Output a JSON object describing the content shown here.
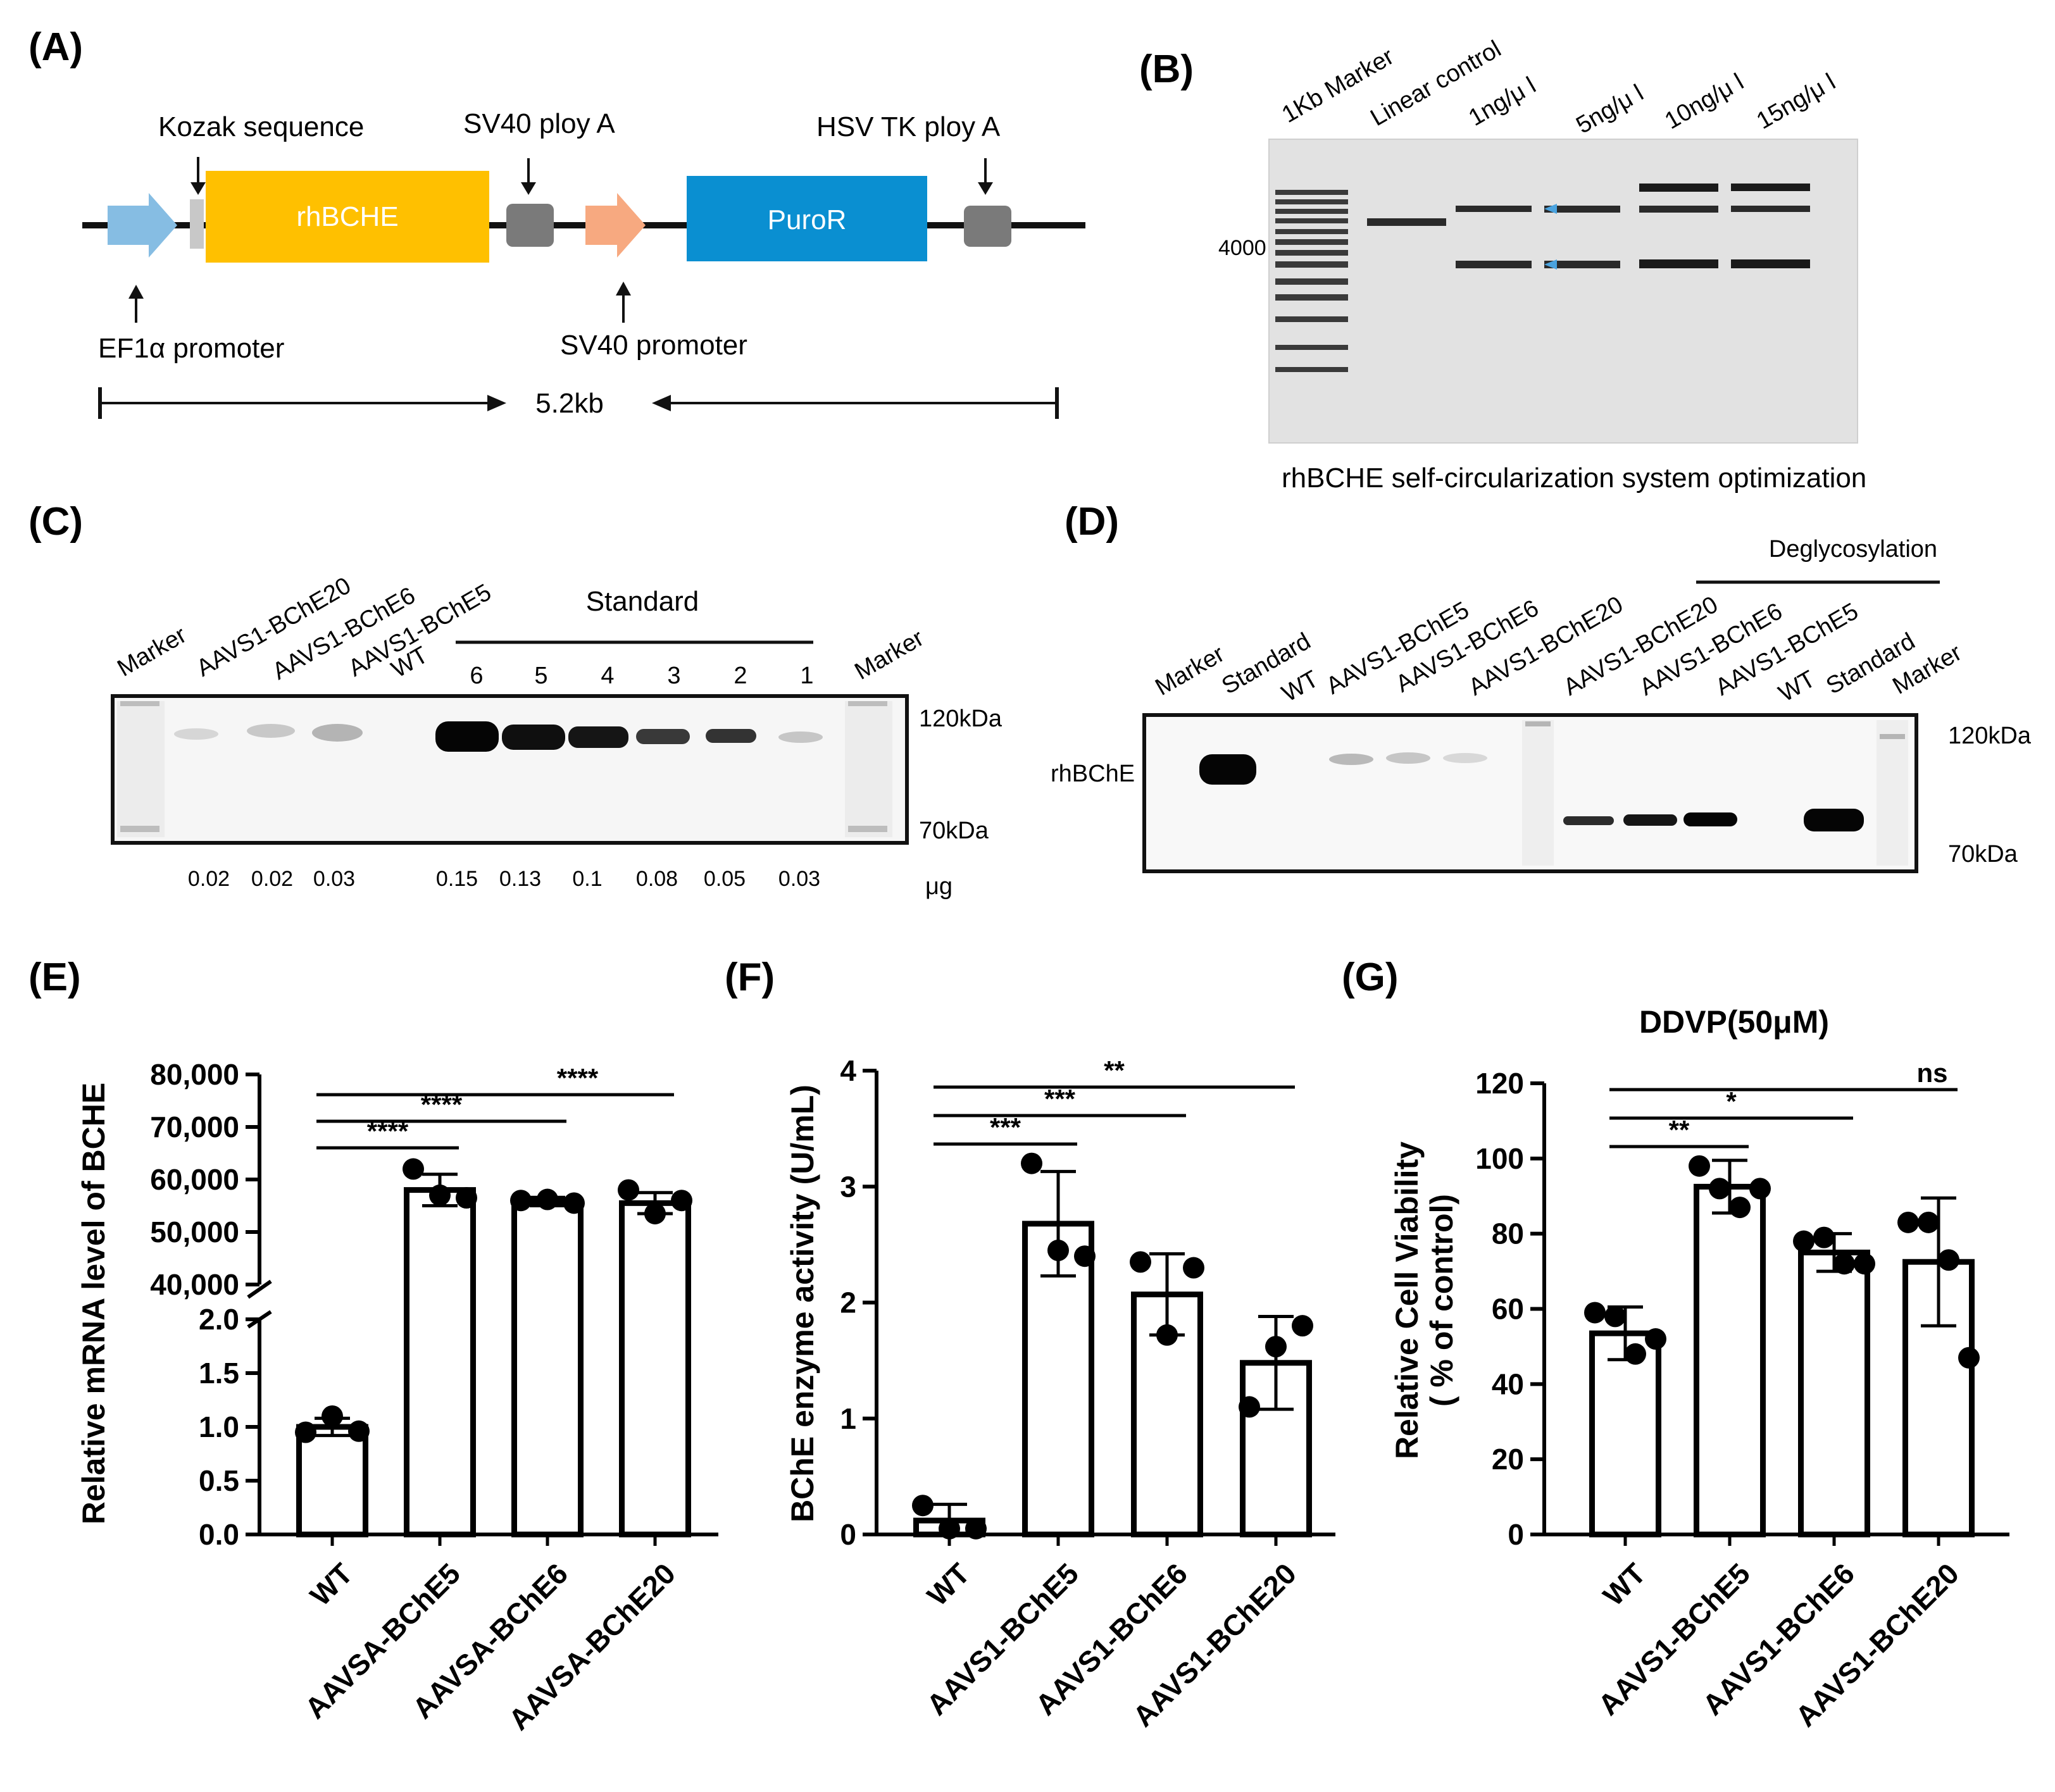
{
  "panels": {
    "A": {
      "letter": "(A)",
      "labels": {
        "kozak": "Kozak  sequence",
        "sv40_polyA": "SV40  ploy  A",
        "hsv_polyA": "HSV TK  ploy  A",
        "rhbche": "rhBCHE",
        "puror": "PuroR",
        "ef1a": "EF1α  promoter",
        "sv40_prom": "SV40  promoter",
        "size": "5.2kb"
      },
      "colors": {
        "ef1a": "#86bde3",
        "kozak": "#c8c8c8",
        "rhbche": "#ffc000",
        "polyA": "#7a7a7a",
        "sv40": "#f7a980",
        "puror": "#0a8fd1"
      }
    },
    "B": {
      "letter": "(B)",
      "lanes": [
        "1Kb Marker",
        "Linear  control",
        "1ng/μ l",
        "5ng/μ l",
        "10ng/μ l",
        "15ng/μ l"
      ],
      "marker_size": "4000",
      "caption": "rhBCHE  self-circularization  system  optimization"
    },
    "C": {
      "letter": "(C)",
      "lanes": [
        "Marker",
        "AAVS1-BChE20",
        "AAVS1-BChE6",
        "AAVS1-BChE5",
        "WT",
        "6",
        "5",
        "4",
        "3",
        "2",
        "1",
        "Marker"
      ],
      "standard_label": "Standard",
      "kda_top": "120kDa",
      "kda_bottom": "70kDa",
      "quantities": [
        "0.02",
        "0.02",
        "0.03",
        "0.15",
        "0.13",
        "0.1",
        "0.08",
        "0.05",
        "0.03"
      ],
      "unit": "μg"
    },
    "D": {
      "letter": "(D)",
      "lanes": [
        "Marker",
        "Standard",
        "WT",
        "AAVS1-BChE5",
        "AAVS1-BChE6",
        "AAVS1-BChE20",
        "AAVS1-BChE20",
        "AAVS1-BChE6",
        "AAVS1-BChE5",
        "WT",
        "Standard",
        "Marker"
      ],
      "deglyco_label": "Deglycosylation",
      "band_label": "rhBChE",
      "kda_top": "120kDa",
      "kda_bottom": "70kDa"
    },
    "E": {
      "letter": "(E)"
    },
    "F": {
      "letter": "(F)"
    },
    "G": {
      "letter": "(G)"
    }
  },
  "chart_data": [
    {
      "panel": "E",
      "type": "bar",
      "ylabel": "Relative mRNA level of BCHE",
      "categories": [
        "WT",
        "AAVSA-BChE5",
        "AAVSA-BChE6",
        "AAVSA-BChE20"
      ],
      "values": [
        1.0,
        58000,
        55800,
        55500
      ],
      "errors": [
        0.08,
        3000,
        800,
        2000
      ],
      "points": [
        [
          0.95,
          1.1,
          0.96
        ],
        [
          62000,
          57000,
          56500
        ],
        [
          56000,
          56200,
          55500
        ],
        [
          58000,
          53500,
          56000
        ]
      ],
      "axis_break": {
        "lower": [
          0,
          2.0
        ],
        "upper": [
          40000,
          80000
        ]
      },
      "yticks_lower": [
        "0.0",
        "0.5",
        "1.0",
        "1.5",
        "2.0"
      ],
      "yticks_upper": [
        "40,000",
        "50,000",
        "60,000",
        "70,000",
        "80,000"
      ],
      "significance": [
        {
          "from": 0,
          "to": 1,
          "label": "****"
        },
        {
          "from": 0,
          "to": 2,
          "label": "****"
        },
        {
          "from": 0,
          "to": 3,
          "label": "****"
        }
      ]
    },
    {
      "panel": "F",
      "type": "bar",
      "ylabel": "BChE enzyme activity (U/mL)",
      "categories": [
        "WT",
        "AAVS1-BChE5",
        "AAVS1-BChE6",
        "AAVS1-BChE20"
      ],
      "values": [
        0.12,
        2.68,
        2.07,
        1.48
      ],
      "errors": [
        0.14,
        0.45,
        0.35,
        0.4
      ],
      "points": [
        [
          0.25,
          0.05,
          0.05
        ],
        [
          3.2,
          2.45,
          2.4
        ],
        [
          2.35,
          1.72,
          2.3
        ],
        [
          1.1,
          1.62,
          1.8
        ]
      ],
      "ylim": [
        0,
        4
      ],
      "yticks": [
        "0",
        "1",
        "2",
        "3",
        "4"
      ],
      "significance": [
        {
          "from": 0,
          "to": 1,
          "label": "***"
        },
        {
          "from": 0,
          "to": 2,
          "label": "***"
        },
        {
          "from": 0,
          "to": 3,
          "label": "**"
        }
      ]
    },
    {
      "panel": "G",
      "type": "bar",
      "title": "DDVP(50μM)",
      "ylabel": "Relative Cell Viability",
      "ylabel2": "( % of control)",
      "categories": [
        "WT",
        "AAVS1-BChE5",
        "AAVS1-BChE6",
        "AAVS1-BChE20"
      ],
      "values": [
        53.5,
        92.5,
        75.0,
        72.5
      ],
      "errors": [
        7,
        7,
        5,
        17
      ],
      "points": [
        [
          59,
          58,
          48,
          52
        ],
        [
          98,
          92,
          87,
          92
        ],
        [
          78,
          79,
          72,
          72
        ],
        [
          83,
          83,
          73,
          47
        ]
      ],
      "ylim": [
        0,
        120
      ],
      "yticks": [
        "0",
        "20",
        "40",
        "60",
        "80",
        "100",
        "120"
      ],
      "significance": [
        {
          "from": 0,
          "to": 1,
          "label": "**"
        },
        {
          "from": 0,
          "to": 2,
          "label": "*"
        },
        {
          "from": 0,
          "to": 3,
          "label": "ns"
        }
      ]
    }
  ]
}
